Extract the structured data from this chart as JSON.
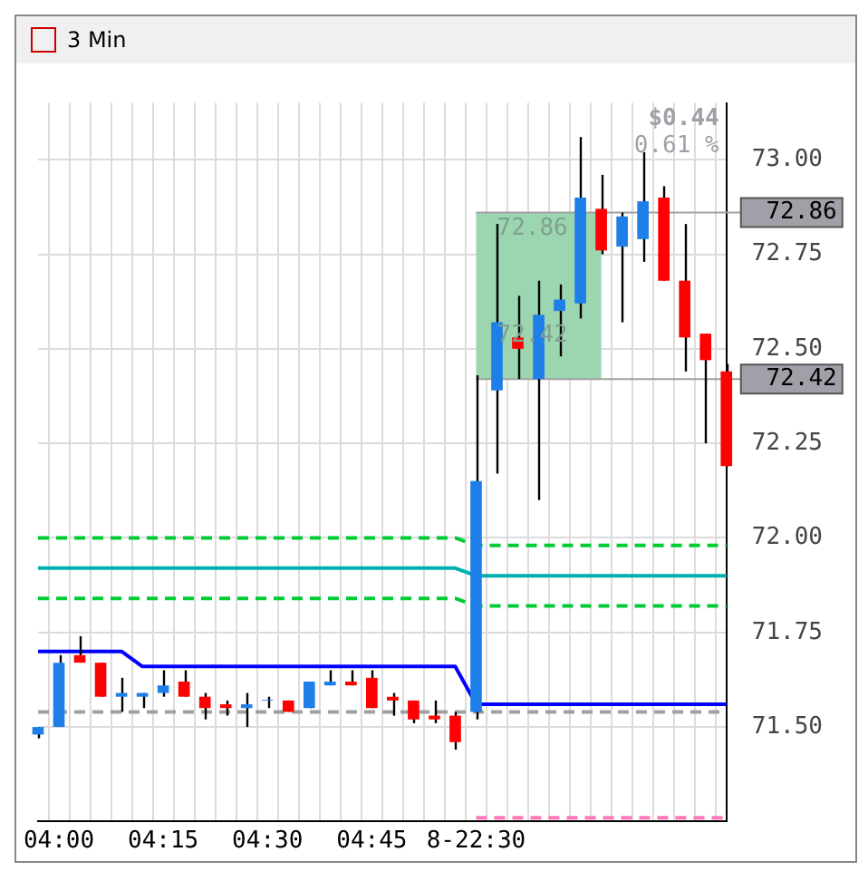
{
  "chart_data": {
    "type": "candlestick",
    "title": "3 Min",
    "categories": [
      null,
      "04:00",
      null,
      null,
      null,
      null,
      "04:15",
      null,
      null,
      null,
      null,
      "04:30",
      null,
      null,
      null,
      null,
      "04:45",
      null,
      null,
      null,
      null,
      "8-22:30",
      null,
      null,
      null,
      null,
      null,
      null,
      null,
      null,
      null,
      null,
      null,
      null
    ],
    "ohlc": [
      [
        71.48,
        71.5,
        71.47,
        71.5
      ],
      [
        71.5,
        71.69,
        71.5,
        71.67
      ],
      [
        71.69,
        71.74,
        71.67,
        71.67
      ],
      [
        71.67,
        71.67,
        71.58,
        71.58
      ],
      [
        71.58,
        71.63,
        71.54,
        71.59
      ],
      [
        71.58,
        71.59,
        71.55,
        71.59
      ],
      [
        71.59,
        71.65,
        71.58,
        71.61
      ],
      [
        71.62,
        71.65,
        71.58,
        71.58
      ],
      [
        71.58,
        71.59,
        71.52,
        71.55
      ],
      [
        71.56,
        71.57,
        71.53,
        71.55
      ],
      [
        71.55,
        71.59,
        71.5,
        71.56
      ],
      [
        71.57,
        71.58,
        71.55,
        71.57
      ],
      [
        71.57,
        71.57,
        71.54,
        71.54
      ],
      [
        71.55,
        71.62,
        71.55,
        71.62
      ],
      [
        71.61,
        71.65,
        71.61,
        71.62
      ],
      [
        71.62,
        71.65,
        71.61,
        71.61
      ],
      [
        71.63,
        71.65,
        71.55,
        71.55
      ],
      [
        71.58,
        71.59,
        71.53,
        71.57
      ],
      [
        71.57,
        71.57,
        71.51,
        71.52
      ],
      [
        71.53,
        71.57,
        71.51,
        71.52
      ],
      [
        71.53,
        71.54,
        71.44,
        71.46
      ],
      [
        71.54,
        72.43,
        71.52,
        72.15
      ],
      [
        72.39,
        72.83,
        72.17,
        72.57
      ],
      [
        72.53,
        72.64,
        72.42,
        72.5
      ],
      [
        72.42,
        72.68,
        72.1,
        72.59
      ],
      [
        72.6,
        72.67,
        72.48,
        72.63
      ],
      [
        72.62,
        73.06,
        72.58,
        72.9
      ],
      [
        72.87,
        72.96,
        72.75,
        72.76
      ],
      [
        72.77,
        72.86,
        72.57,
        72.85
      ],
      [
        72.79,
        73.02,
        72.73,
        72.89
      ],
      [
        72.9,
        72.93,
        72.68,
        72.68
      ],
      [
        72.68,
        72.83,
        72.44,
        72.53
      ],
      [
        72.54,
        72.54,
        72.25,
        72.47
      ],
      [
        72.44,
        72.46,
        72.19,
        72.19
      ]
    ],
    "series": [
      {
        "type": "line",
        "color": "#0000ff",
        "values": [
          71.7,
          71.7,
          71.7,
          71.7,
          71.7,
          71.66,
          71.66,
          71.66,
          71.66,
          71.66,
          71.66,
          71.66,
          71.66,
          71.66,
          71.66,
          71.66,
          71.66,
          71.66,
          71.66,
          71.66,
          71.66,
          71.56,
          71.56,
          71.56,
          71.56,
          71.56,
          71.56,
          71.56,
          71.56,
          71.56,
          71.56,
          71.56,
          71.56,
          71.56
        ]
      },
      {
        "type": "line",
        "color": "#00b0b0",
        "values": [
          71.92,
          71.92,
          71.92,
          71.92,
          71.92,
          71.92,
          71.92,
          71.92,
          71.92,
          71.92,
          71.92,
          71.92,
          71.92,
          71.92,
          71.92,
          71.92,
          71.92,
          71.92,
          71.92,
          71.92,
          71.92,
          71.9,
          71.9,
          71.9,
          71.9,
          71.9,
          71.9,
          71.9,
          71.9,
          71.9,
          71.9,
          71.9,
          71.9,
          71.9
        ]
      },
      {
        "type": "line",
        "color": "#00cc33",
        "line_style": "dashed",
        "values": [
          72.0,
          72.0,
          72.0,
          72.0,
          72.0,
          72.0,
          72.0,
          72.0,
          72.0,
          72.0,
          72.0,
          72.0,
          72.0,
          72.0,
          72.0,
          72.0,
          72.0,
          72.0,
          72.0,
          72.0,
          72.0,
          71.98,
          71.98,
          71.98,
          71.98,
          71.98,
          71.98,
          71.98,
          71.98,
          71.98,
          71.98,
          71.98,
          71.98,
          71.98
        ]
      },
      {
        "type": "line",
        "color": "#00cc33",
        "line_style": "dashed",
        "values": [
          71.84,
          71.84,
          71.84,
          71.84,
          71.84,
          71.84,
          71.84,
          71.84,
          71.84,
          71.84,
          71.84,
          71.84,
          71.84,
          71.84,
          71.84,
          71.84,
          71.84,
          71.84,
          71.84,
          71.84,
          71.84,
          71.82,
          71.82,
          71.82,
          71.82,
          71.82,
          71.82,
          71.82,
          71.82,
          71.82,
          71.82,
          71.82,
          71.82,
          71.82
        ]
      },
      {
        "type": "line",
        "color": "#a0a0a0",
        "line_style": "dashed",
        "values": [
          71.54,
          71.54,
          71.54,
          71.54,
          71.54,
          71.54,
          71.54,
          71.54,
          71.54,
          71.54,
          71.54,
          71.54,
          71.54,
          71.54,
          71.54,
          71.54,
          71.54,
          71.54,
          71.54,
          71.54,
          71.54,
          71.54,
          71.54,
          71.54,
          71.54,
          71.54,
          71.54,
          71.54,
          71.54,
          71.54,
          71.54,
          71.54,
          71.54,
          71.54
        ]
      },
      {
        "type": "line",
        "color": "#ff77bb",
        "line_style": "dashed",
        "values": [
          null,
          null,
          null,
          null,
          null,
          null,
          null,
          null,
          null,
          null,
          null,
          null,
          null,
          null,
          null,
          null,
          null,
          null,
          null,
          null,
          null,
          71.26,
          71.26,
          71.26,
          71.26,
          71.26,
          71.26,
          71.26,
          71.26,
          71.26,
          71.26,
          71.26,
          71.26,
          71.26
        ]
      }
    ],
    "ylim": [
      71.25,
      73.15
    ],
    "yticks": [
      {
        "value": 71.5,
        "label": "71.50"
      },
      {
        "value": 71.75,
        "label": "71.75"
      },
      {
        "value": 72,
        "label": "72.00"
      },
      {
        "value": 72.25,
        "label": "72.25"
      },
      {
        "value": 72.5,
        "label": "72.50"
      },
      {
        "value": 72.75,
        "label": "72.75"
      },
      {
        "value": 73,
        "label": "73.00"
      }
    ],
    "ref_lines": [
      {
        "axis": "y",
        "value": 72.86,
        "label": "72.86",
        "color": "#a0a0a0"
      },
      {
        "axis": "y",
        "value": 72.42,
        "label": "72.42",
        "color": "#a0a0a0"
      }
    ],
    "bands": [
      {
        "axis": "y",
        "from": 72.42,
        "to": 72.86,
        "color": "#9cd6b0"
      }
    ],
    "annotations": [
      "$0.44",
      "0.61 %",
      {
        "text": "72.86",
        "y": 72.86
      },
      {
        "text": "72.42",
        "y": 72.42
      }
    ],
    "grid": true,
    "legend": false
  }
}
